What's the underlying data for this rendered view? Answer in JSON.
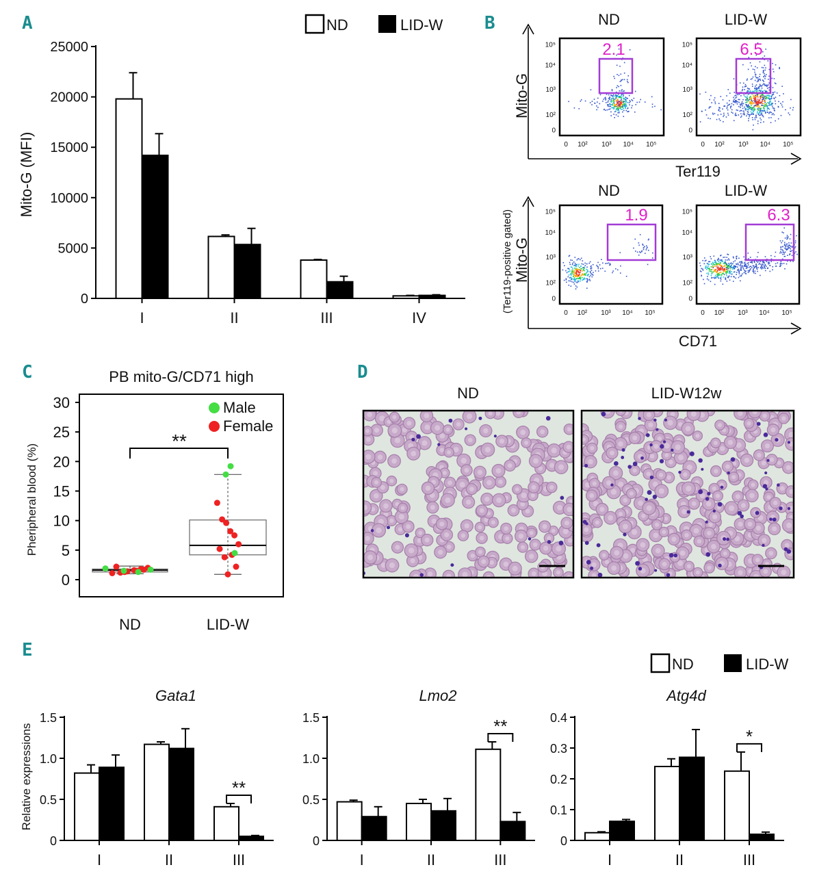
{
  "panels": {
    "A": "A",
    "B": "B",
    "C": "C",
    "D": "D",
    "E": "E"
  },
  "legend": {
    "nd": "ND",
    "lid": "LID-W"
  },
  "colors": {
    "nd": "#ffffff",
    "lid": "#000000",
    "male": "#44dd44",
    "female": "#ee2222",
    "gate": "#a23bd6",
    "gate_text": "#e020c8",
    "panel_label": "#1a8c8f",
    "smear_bg": "#dfe6df"
  },
  "chart_data": [
    {
      "id": "A",
      "type": "bar",
      "ylabel": "Mito-G (MFI)",
      "categories": [
        "I",
        "II",
        "III",
        "IV"
      ],
      "ylim": [
        0,
        25000
      ],
      "yticks": [
        "0",
        "5000",
        "10000",
        "15000",
        "20000",
        "25000"
      ],
      "ytick_values": [
        0,
        5000,
        10000,
        15000,
        20000,
        25000
      ],
      "series": [
        {
          "name": "ND",
          "values": [
            19800,
            6150,
            3800,
            250
          ],
          "errors": [
            2600,
            150,
            60,
            50
          ]
        },
        {
          "name": "LID-W",
          "values": [
            14200,
            5350,
            1650,
            300
          ],
          "errors": [
            2150,
            1600,
            550,
            60
          ]
        }
      ]
    },
    {
      "id": "C",
      "type": "scatter",
      "title": "PB mito-G/CD71 high",
      "ylabel": "Pheripheral blood (%)",
      "categories": [
        "ND",
        "LID-W"
      ],
      "ylim": [
        0,
        30
      ],
      "yticks": [
        "0",
        "5",
        "10",
        "15",
        "20",
        "25",
        "30"
      ],
      "ytick_values": [
        0,
        5,
        10,
        15,
        20,
        25,
        30
      ],
      "legend": [
        "Male",
        "Female"
      ],
      "significance": "**",
      "boxes": [
        {
          "group": "ND",
          "q1": 1.3,
          "median": 1.6,
          "q3": 1.8,
          "whisker_low": 1.0,
          "whisker_high": 2.3
        },
        {
          "group": "LID-W",
          "q1": 4.2,
          "median": 5.8,
          "q3": 10.1,
          "whisker_low": 0.9,
          "whisker_high": 17.8
        }
      ],
      "points": {
        "ND": {
          "male": [
            1.3,
            1.5,
            1.7,
            1.9
          ],
          "female": [
            1.1,
            1.2,
            1.4,
            1.6,
            1.8,
            2.0,
            2.2,
            1.5,
            1.3,
            1.7
          ]
        },
        "LID-W": {
          "male": [
            19.2,
            17.8,
            4.5
          ],
          "female": [
            13.0,
            10.2,
            9.6,
            8.2,
            7.5,
            6.0,
            5.2,
            4.2,
            3.8,
            2.2,
            0.9
          ]
        }
      }
    },
    {
      "id": "E-Gata1",
      "type": "bar",
      "title": "Gata1",
      "ylabel": "Relative expressions",
      "categories": [
        "I",
        "II",
        "III"
      ],
      "ylim": [
        0,
        1.5
      ],
      "yticks": [
        "0",
        "0.5",
        "1.0",
        "1.5"
      ],
      "ytick_values": [
        0,
        0.5,
        1.0,
        1.5
      ],
      "significance": {
        "category": "III",
        "label": "**"
      },
      "series": [
        {
          "name": "ND",
          "values": [
            0.82,
            1.17,
            0.41
          ],
          "errors": [
            0.1,
            0.03,
            0.04
          ]
        },
        {
          "name": "LID-W",
          "values": [
            0.89,
            1.12,
            0.05
          ],
          "errors": [
            0.15,
            0.24,
            0.01
          ]
        }
      ]
    },
    {
      "id": "E-Lmo2",
      "type": "bar",
      "title": "Lmo2",
      "ylabel": "",
      "categories": [
        "I",
        "II",
        "III"
      ],
      "ylim": [
        0,
        1.5
      ],
      "yticks": [
        "0",
        "0.5",
        "1.0",
        "1.5"
      ],
      "ytick_values": [
        0,
        0.5,
        1.0,
        1.5
      ],
      "significance": {
        "category": "III",
        "label": "**"
      },
      "series": [
        {
          "name": "ND",
          "values": [
            0.47,
            0.45,
            1.11
          ],
          "errors": [
            0.02,
            0.05,
            0.09
          ]
        },
        {
          "name": "LID-W",
          "values": [
            0.29,
            0.36,
            0.23
          ],
          "errors": [
            0.12,
            0.15,
            0.11
          ]
        }
      ]
    },
    {
      "id": "E-Atg4d",
      "type": "bar",
      "title": "Atg4d",
      "ylabel": "",
      "categories": [
        "I",
        "II",
        "III"
      ],
      "ylim": [
        0,
        0.4
      ],
      "yticks": [
        "0",
        "0.1",
        "0.2",
        "0.3",
        "0.4"
      ],
      "ytick_values": [
        0,
        0.1,
        0.2,
        0.3,
        0.4
      ],
      "significance": {
        "category": "III",
        "label": "*"
      },
      "series": [
        {
          "name": "ND",
          "values": [
            0.025,
            0.24,
            0.225
          ],
          "errors": [
            0.003,
            0.025,
            0.062
          ]
        },
        {
          "name": "LID-W",
          "values": [
            0.062,
            0.27,
            0.02
          ],
          "errors": [
            0.006,
            0.09,
            0.007
          ]
        }
      ]
    }
  ],
  "flow": {
    "x_label_top": "Ter119",
    "x_label_bottom": "CD71",
    "y_label": "Mito-G",
    "y_label_gated": "(Ter119-positive gated)",
    "conditions": [
      "ND",
      "LID-W"
    ],
    "tick_labels": [
      "0",
      "10²",
      "10³",
      "10⁴",
      "10⁵"
    ],
    "gates": [
      {
        "row": "top",
        "condition": "ND",
        "percent": "2.1"
      },
      {
        "row": "top",
        "condition": "LID-W",
        "percent": "6.5"
      },
      {
        "row": "bottom",
        "condition": "ND",
        "percent": "1.9"
      },
      {
        "row": "bottom",
        "condition": "LID-W",
        "percent": "6.3"
      }
    ]
  },
  "smear": {
    "titles": [
      "ND",
      "LID-W12w"
    ]
  }
}
